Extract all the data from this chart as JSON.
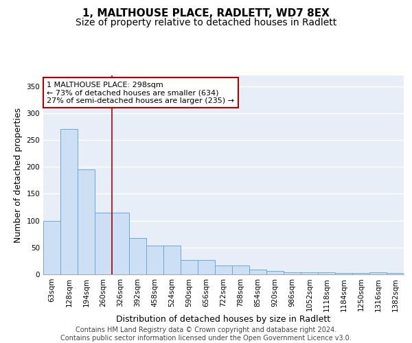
{
  "title": "1, MALTHOUSE PLACE, RADLETT, WD7 8EX",
  "subtitle": "Size of property relative to detached houses in Radlett",
  "xlabel": "Distribution of detached houses by size in Radlett",
  "ylabel": "Number of detached properties",
  "categories": [
    "63sqm",
    "128sqm",
    "194sqm",
    "260sqm",
    "326sqm",
    "392sqm",
    "458sqm",
    "524sqm",
    "590sqm",
    "656sqm",
    "722sqm",
    "788sqm",
    "854sqm",
    "920sqm",
    "986sqm",
    "1052sqm",
    "1118sqm",
    "1184sqm",
    "1250sqm",
    "1316sqm",
    "1382sqm"
  ],
  "values": [
    100,
    270,
    195,
    115,
    115,
    68,
    54,
    54,
    27,
    27,
    16,
    16,
    9,
    7,
    4,
    4,
    4,
    2,
    2,
    4,
    3
  ],
  "bar_color": "#ccdff5",
  "bar_edge_color": "#6aaad4",
  "annotation_text": "1 MALTHOUSE PLACE: 298sqm\n← 73% of detached houses are smaller (634)\n27% of semi-detached houses are larger (235) →",
  "annotation_box_color": "#ffffff",
  "annotation_box_edge": "#aa0000",
  "vline_x": 3.5,
  "vline_color": "#aa0000",
  "ylim": [
    0,
    370
  ],
  "yticks": [
    0,
    50,
    100,
    150,
    200,
    250,
    300,
    350
  ],
  "background_color": "#e8eef8",
  "grid_color": "#ffffff",
  "footer_text": "Contains HM Land Registry data © Crown copyright and database right 2024.\nContains public sector information licensed under the Open Government Licence v3.0.",
  "title_fontsize": 11,
  "subtitle_fontsize": 10,
  "xlabel_fontsize": 9,
  "ylabel_fontsize": 9,
  "tick_fontsize": 7.5,
  "footer_fontsize": 7,
  "ann_fontsize": 8
}
